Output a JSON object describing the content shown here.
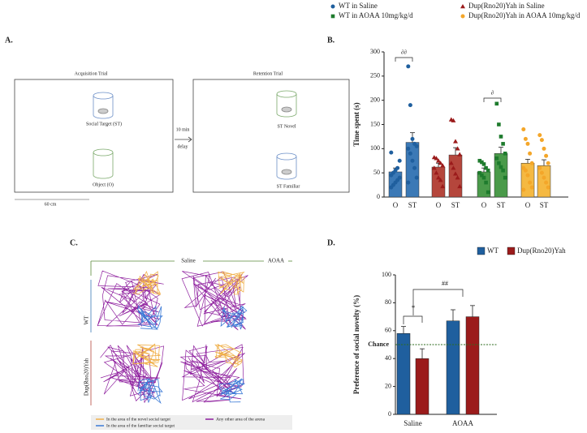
{
  "diagram": {
    "label": "A.",
    "left_title": "Acquisition Trial",
    "right_title": "Retention Trial",
    "social_target": "Social Target (ST)",
    "object": "Object (O)",
    "interval": "10 min",
    "interval_note": "delay",
    "scale": "60 cm",
    "novel": "ST Novel",
    "familiar": "ST Familiar"
  },
  "tracks": {
    "label": "C.",
    "columns": [
      "Saline",
      "AOAA"
    ],
    "rows": [
      "WT",
      "Dup(Rno20)Yah"
    ],
    "legend": [
      "In the area of the novel social target",
      "In the area of the familiar social target",
      "Any other area of the arena"
    ]
  },
  "chart_data": [
    {
      "type": "bar",
      "label": "B.",
      "ylabel": "Time spent (s)",
      "categories": [
        "O",
        "ST"
      ],
      "ylim": [
        0,
        300
      ],
      "yticks": [
        0,
        50,
        100,
        150,
        200,
        250,
        300
      ],
      "annotations": [
        "∂∂",
        "∂"
      ],
      "series": [
        {
          "name": "WT in Saline",
          "color": "#3b79b6",
          "marker_color": "#1f5f9e",
          "marker": "circle",
          "values": [
            52,
            113
          ],
          "errors": [
            8,
            20
          ],
          "points": [
            [
              20,
              25,
              30,
              35,
              40,
              45,
              50,
              55,
              60,
              75,
              92
            ],
            [
              270,
              190,
              120,
              110,
              105,
              100,
              90,
              75,
              60,
              40,
              30
            ]
          ]
        },
        {
          "name": "Dup(Rno20)Yah in Saline",
          "color": "#b5463c",
          "marker_color": "#9b1b1b",
          "marker": "triangle",
          "values": [
            62,
            87
          ],
          "errors": [
            8,
            15
          ],
          "points": [
            [
              82,
              80,
              75,
              70,
              65,
              60,
              50,
              40,
              35,
              22
            ],
            [
              160,
              158,
              115,
              100,
              88,
              70,
              60,
              48,
              40,
              22
            ]
          ]
        },
        {
          "name": "WT in AOAA 10mg/kg/d",
          "color": "#4a9a4a",
          "marker_color": "#1e7b2d",
          "marker": "square",
          "values": [
            52,
            90
          ],
          "errors": [
            8,
            13
          ],
          "points": [
            [
              75,
              72,
              68,
              60,
              55,
              50,
              45,
              40,
              30,
              10
            ],
            [
              193,
              150,
              125,
              110,
              90,
              80,
              70,
              62,
              55,
              40
            ]
          ]
        },
        {
          "name": "Dup(Rno20)Yah in AOAA 10mg/kg/d",
          "color": "#f5b942",
          "marker_color": "#f4a629",
          "marker": "circle",
          "values": [
            70,
            65
          ],
          "errors": [
            8,
            12
          ],
          "points": [
            [
              140,
              120,
              110,
              90,
              70,
              60,
              55,
              45,
              30,
              20,
              15
            ],
            [
              128,
              118,
              100,
              85,
              70,
              60,
              50,
              40,
              30,
              20
            ]
          ]
        }
      ]
    },
    {
      "type": "bar",
      "label": "D.",
      "ylabel": "Preference of social novelty (%)",
      "categories": [
        "Saline",
        "AOAA"
      ],
      "ylim": [
        0,
        100
      ],
      "yticks": [
        0,
        20,
        40,
        60,
        80,
        100
      ],
      "annotations": [
        "*",
        "##"
      ],
      "reference_line": {
        "value": 50,
        "label": "Chance",
        "color": "#2e6b1e"
      },
      "series": [
        {
          "name": "WT",
          "color": "#1f5f9e",
          "values": [
            58,
            67
          ],
          "errors": [
            5,
            8
          ]
        },
        {
          "name": "Dup(Rno20)Yah",
          "color": "#9b1b1b",
          "values": [
            40,
            70
          ],
          "errors": [
            7,
            8
          ]
        }
      ]
    }
  ]
}
